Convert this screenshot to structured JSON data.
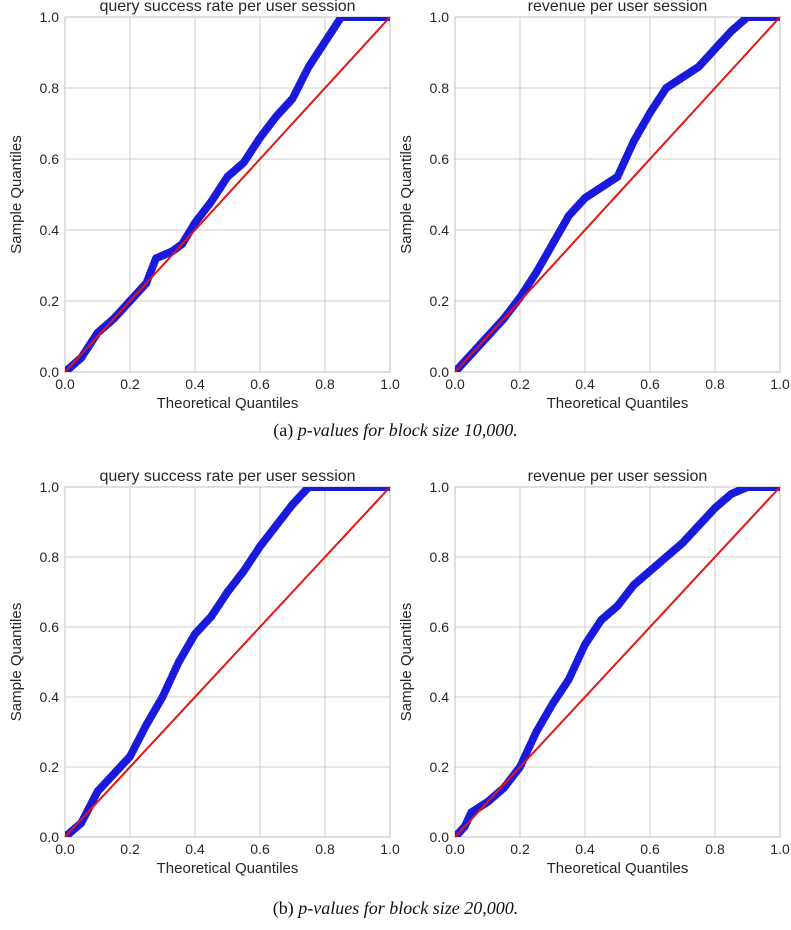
{
  "captions": [
    {
      "label": "(a)",
      "text": "p-values for block size 10,000."
    },
    {
      "label": "(b)",
      "text": "p-values for block size 20,000."
    }
  ],
  "colors": {
    "points": "#1a1adc",
    "line": "#e8140f",
    "grid": "#cccccc",
    "frame": "#bfbfbf"
  },
  "chart_data": [
    {
      "type": "scatter",
      "title": "query success rate per user session",
      "xlabel": "Theoretical Quantiles",
      "ylabel": "Sample Quantiles",
      "xlim": [
        0,
        1
      ],
      "ylim": [
        0,
        1
      ],
      "xticks": [
        "0.0",
        "0.2",
        "0.4",
        "0.6",
        "0.8",
        "1.0"
      ],
      "yticks": [
        "0.0",
        "0.2",
        "0.4",
        "0.6",
        "0.8",
        "1.0"
      ],
      "grid": true,
      "reference_line": [
        [
          0,
          0
        ],
        [
          1,
          1
        ]
      ],
      "series": [
        {
          "values": [
            [
              0,
              0
            ],
            [
              0.05,
              0.04
            ],
            [
              0.1,
              0.11
            ],
            [
              0.15,
              0.15
            ],
            [
              0.2,
              0.2
            ],
            [
              0.25,
              0.25
            ],
            [
              0.28,
              0.32
            ],
            [
              0.33,
              0.34
            ],
            [
              0.36,
              0.36
            ],
            [
              0.4,
              0.42
            ],
            [
              0.45,
              0.48
            ],
            [
              0.5,
              0.55
            ],
            [
              0.55,
              0.59
            ],
            [
              0.6,
              0.66
            ],
            [
              0.65,
              0.72
            ],
            [
              0.7,
              0.77
            ],
            [
              0.75,
              0.86
            ],
            [
              0.8,
              0.93
            ],
            [
              0.85,
              1.0
            ],
            [
              0.9,
              1.0
            ],
            [
              0.95,
              1.0
            ],
            [
              1.0,
              1.0
            ]
          ]
        }
      ]
    },
    {
      "type": "scatter",
      "title": "revenue per user session",
      "xlabel": "Theoretical Quantiles",
      "ylabel": "Sample Quantiles",
      "xlim": [
        0,
        1
      ],
      "ylim": [
        0,
        1
      ],
      "xticks": [
        "0.0",
        "0.2",
        "0.4",
        "0.6",
        "0.8",
        "1.0"
      ],
      "yticks": [
        "0.0",
        "0.2",
        "0.4",
        "0.6",
        "0.8",
        "1.0"
      ],
      "grid": true,
      "reference_line": [
        [
          0,
          0
        ],
        [
          1,
          1
        ]
      ],
      "series": [
        {
          "values": [
            [
              0,
              0
            ],
            [
              0.05,
              0.05
            ],
            [
              0.1,
              0.1
            ],
            [
              0.15,
              0.15
            ],
            [
              0.2,
              0.21
            ],
            [
              0.25,
              0.28
            ],
            [
              0.3,
              0.36
            ],
            [
              0.35,
              0.44
            ],
            [
              0.4,
              0.49
            ],
            [
              0.45,
              0.52
            ],
            [
              0.5,
              0.55
            ],
            [
              0.55,
              0.65
            ],
            [
              0.6,
              0.73
            ],
            [
              0.65,
              0.8
            ],
            [
              0.7,
              0.83
            ],
            [
              0.75,
              0.86
            ],
            [
              0.8,
              0.91
            ],
            [
              0.85,
              0.96
            ],
            [
              0.9,
              1.0
            ],
            [
              0.95,
              1.0
            ],
            [
              1.0,
              1.0
            ]
          ]
        }
      ]
    },
    {
      "type": "scatter",
      "title": "query success rate per user session",
      "xlabel": "Theoretical Quantiles",
      "ylabel": "Sample Quantiles",
      "xlim": [
        0,
        1
      ],
      "ylim": [
        0,
        1
      ],
      "xticks": [
        "0.0",
        "0.2",
        "0.4",
        "0.6",
        "0.8",
        "1.0"
      ],
      "yticks": [
        "0.0",
        "0.2",
        "0.4",
        "0.6",
        "0.8",
        "1.0"
      ],
      "grid": true,
      "reference_line": [
        [
          0,
          0
        ],
        [
          1,
          1
        ]
      ],
      "series": [
        {
          "values": [
            [
              0,
              0
            ],
            [
              0.05,
              0.04
            ],
            [
              0.1,
              0.13
            ],
            [
              0.15,
              0.18
            ],
            [
              0.2,
              0.23
            ],
            [
              0.25,
              0.32
            ],
            [
              0.3,
              0.4
            ],
            [
              0.35,
              0.5
            ],
            [
              0.4,
              0.58
            ],
            [
              0.45,
              0.63
            ],
            [
              0.5,
              0.7
            ],
            [
              0.55,
              0.76
            ],
            [
              0.6,
              0.83
            ],
            [
              0.65,
              0.89
            ],
            [
              0.7,
              0.95
            ],
            [
              0.75,
              1.0
            ],
            [
              0.8,
              1.0
            ],
            [
              0.85,
              1.0
            ],
            [
              0.9,
              1.0
            ],
            [
              0.95,
              1.0
            ],
            [
              1.0,
              1.0
            ]
          ]
        }
      ]
    },
    {
      "type": "scatter",
      "title": "revenue per user session",
      "xlabel": "Theoretical Quantiles",
      "ylabel": "Sample Quantiles",
      "xlim": [
        0,
        1
      ],
      "ylim": [
        0,
        1
      ],
      "xticks": [
        "0.0",
        "0.2",
        "0.4",
        "0.6",
        "0.8",
        "1.0"
      ],
      "yticks": [
        "0.0",
        "0.2",
        "0.4",
        "0.6",
        "0.8",
        "1.0"
      ],
      "grid": true,
      "reference_line": [
        [
          0,
          0
        ],
        [
          1,
          1
        ]
      ],
      "series": [
        {
          "values": [
            [
              0,
              0
            ],
            [
              0.03,
              0.03
            ],
            [
              0.05,
              0.07
            ],
            [
              0.1,
              0.1
            ],
            [
              0.15,
              0.14
            ],
            [
              0.2,
              0.2
            ],
            [
              0.25,
              0.3
            ],
            [
              0.3,
              0.38
            ],
            [
              0.35,
              0.45
            ],
            [
              0.4,
              0.55
            ],
            [
              0.45,
              0.62
            ],
            [
              0.5,
              0.66
            ],
            [
              0.55,
              0.72
            ],
            [
              0.6,
              0.76
            ],
            [
              0.65,
              0.8
            ],
            [
              0.7,
              0.84
            ],
            [
              0.75,
              0.89
            ],
            [
              0.8,
              0.94
            ],
            [
              0.85,
              0.98
            ],
            [
              0.9,
              1.0
            ],
            [
              0.95,
              1.0
            ],
            [
              1.0,
              1.0
            ]
          ]
        }
      ]
    }
  ]
}
